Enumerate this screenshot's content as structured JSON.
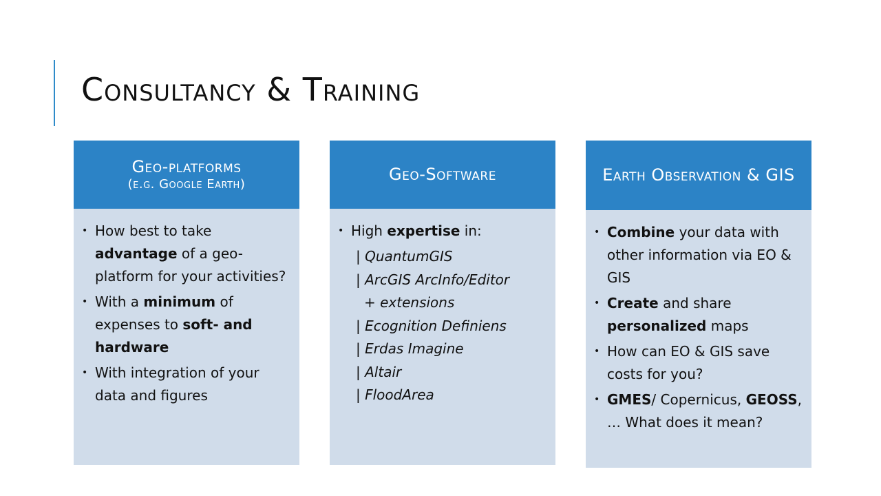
{
  "slide": {
    "title": "Consultancy & Training"
  },
  "cards": [
    {
      "heading": "Geo-platforms",
      "subheading": "(e.g. Google Earth)",
      "items": [
        {
          "parts": [
            {
              "t": "How best to take "
            },
            {
              "t": "advantage",
              "b": true
            },
            {
              "t": " of a geo-platform for your activities?"
            }
          ]
        },
        {
          "parts": [
            {
              "t": "With a "
            },
            {
              "t": "minimum",
              "b": true
            },
            {
              "t": " of expenses to "
            },
            {
              "t": "soft- and hardware",
              "b": true
            }
          ]
        },
        {
          "parts": [
            {
              "t": "With integration of your data and figures"
            }
          ]
        }
      ]
    },
    {
      "heading": "Geo-Software",
      "intro_parts": [
        {
          "t": "High "
        },
        {
          "t": "expertise",
          "b": true
        },
        {
          "t": " in:"
        }
      ],
      "software": [
        {
          "bar": "| ",
          "name": "QuantumGIS"
        },
        {
          "bar": "| ",
          "name": "ArcGIS ArcInfo/Editor"
        },
        {
          "indent": true,
          "name": "+ extensions"
        },
        {
          "bar": "| ",
          "name": "Ecognition Definiens"
        },
        {
          "bar": "| ",
          "name": "Erdas Imagine"
        },
        {
          "bar": "| ",
          "name": "Altair"
        },
        {
          "bar": "| ",
          "name": "FloodArea"
        }
      ]
    },
    {
      "heading": "Earth Observation & GIS",
      "items": [
        {
          "parts": [
            {
              "t": "Combine",
              "b": true
            },
            {
              "t": " your data with other information via EO & GIS"
            }
          ]
        },
        {
          "parts": [
            {
              "t": "Create",
              "b": true
            },
            {
              "t": " and share "
            },
            {
              "t": "personalized",
              "b": true
            },
            {
              "t": " maps"
            }
          ]
        },
        {
          "parts": [
            {
              "t": "How can EO & GIS save costs for you?"
            }
          ]
        },
        {
          "parts": [
            {
              "t": "GMES",
              "b": true
            },
            {
              "t": "/ Copernicus, "
            },
            {
              "t": "GEOSS",
              "b": true
            },
            {
              "t": ", … What does it mean?"
            }
          ]
        }
      ]
    }
  ],
  "colors": {
    "accent": "#2e8bc9",
    "header": "#2c83c6",
    "body": "#d0dcea"
  }
}
